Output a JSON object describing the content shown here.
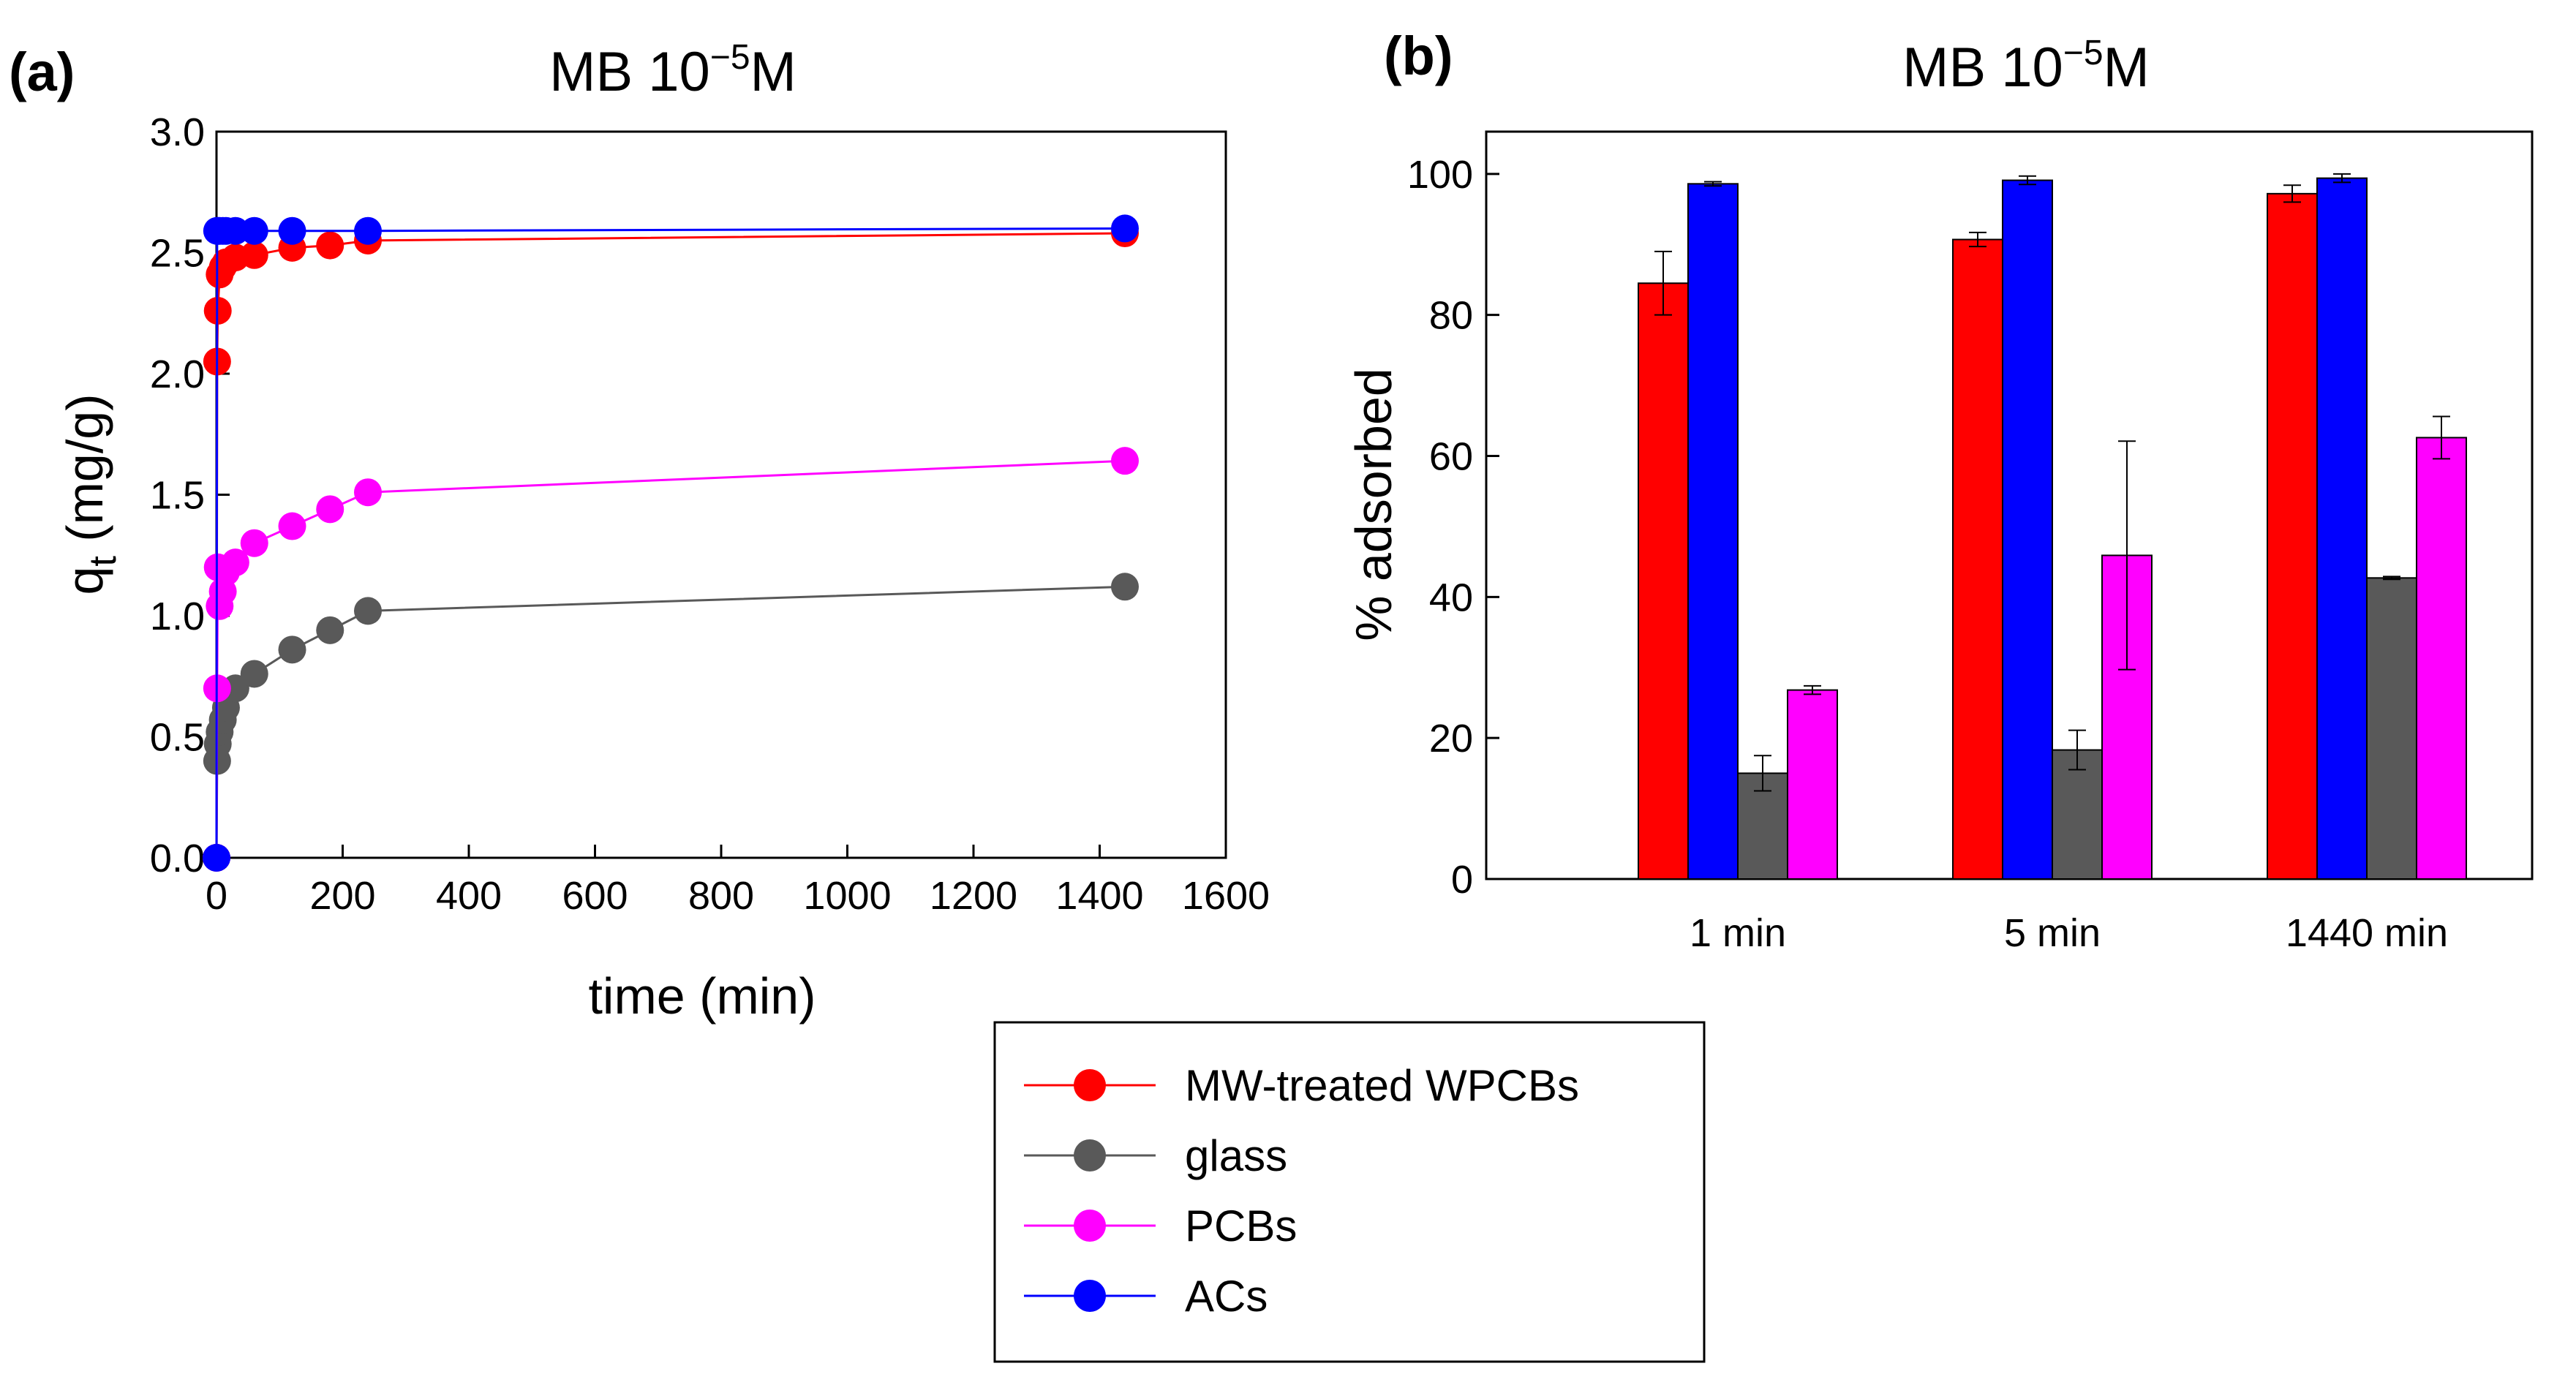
{
  "chart_data": [
    {
      "panel": "(a)",
      "type": "scatter",
      "mode": "lines+markers",
      "title_main": "MB 10",
      "title_sup": "−5",
      "title_tail": "M",
      "xlabel": "time (min)",
      "ylabel_main": "q",
      "ylabel_sub": "t",
      "ylabel_tail": " (mg/g)",
      "xlim": [
        0,
        1600
      ],
      "ylim": [
        0,
        3.0
      ],
      "xticks": [
        "0",
        "200",
        "400",
        "600",
        "800",
        "1000",
        "1200",
        "1400",
        "1600"
      ],
      "yticks": [
        "0.0",
        "0.5",
        "1.0",
        "1.5",
        "2.0",
        "2.5",
        "3.0"
      ],
      "series": [
        {
          "name": "MW-treated WPCBs",
          "color": "#ff0000",
          "x": [
            0,
            1,
            2,
            5,
            10,
            15,
            30,
            60,
            120,
            180,
            240,
            1440
          ],
          "y": [
            0,
            2.05,
            2.26,
            2.41,
            2.44,
            2.46,
            2.48,
            2.49,
            2.52,
            2.53,
            2.55,
            2.58
          ]
        },
        {
          "name": "glass",
          "color": "#595959",
          "x": [
            0,
            1,
            2,
            5,
            10,
            15,
            30,
            60,
            120,
            180,
            240,
            1440
          ],
          "y": [
            0,
            0.4,
            0.47,
            0.52,
            0.57,
            0.62,
            0.7,
            0.76,
            0.86,
            0.94,
            1.02,
            1.12
          ]
        },
        {
          "name": "PCBs",
          "color": "#ff00ff",
          "x": [
            0,
            1,
            2,
            5,
            10,
            15,
            30,
            60,
            120,
            180,
            240,
            1440
          ],
          "y": [
            0,
            0.7,
            1.2,
            1.04,
            1.1,
            1.18,
            1.22,
            1.3,
            1.37,
            1.44,
            1.51,
            1.64
          ]
        },
        {
          "name": "ACs",
          "color": "#0000ff",
          "x": [
            0,
            1,
            2,
            5,
            10,
            15,
            30,
            60,
            120,
            240,
            1440
          ],
          "y": [
            0,
            2.59,
            2.59,
            2.59,
            2.59,
            2.59,
            2.59,
            2.59,
            2.59,
            2.59,
            2.6
          ]
        }
      ]
    },
    {
      "panel": "(b)",
      "type": "bar",
      "title_main": "MB 10",
      "title_sup": "−5",
      "title_tail": "M",
      "ylabel": "% adsorbed",
      "ylim": [
        0,
        106
      ],
      "yticks": [
        "0",
        "20",
        "40",
        "60",
        "80",
        "100"
      ],
      "categories": [
        "1 min",
        "5 min",
        "1440 min"
      ],
      "series": [
        {
          "name": "MW-treated WPCBs",
          "color": "#ff0000",
          "values": [
            84.5,
            90.7,
            97.2
          ],
          "errors": [
            4.5,
            1.0,
            1.2
          ]
        },
        {
          "name": "ACs",
          "color": "#0000ff",
          "values": [
            98.6,
            99.1,
            99.4
          ],
          "errors": [
            0.3,
            0.6,
            0.6
          ]
        },
        {
          "name": "glass",
          "color": "#595959",
          "values": [
            15.0,
            18.3,
            42.7
          ],
          "errors": [
            2.5,
            2.8,
            0.2
          ]
        },
        {
          "name": "PCBs",
          "color": "#ff00ff",
          "values": [
            26.8,
            45.9,
            62.6
          ],
          "errors": [
            0.6,
            16.2,
            3.0
          ]
        }
      ]
    }
  ],
  "legend": [
    {
      "label": "MW-treated WPCBs",
      "color": "#ff0000"
    },
    {
      "label": "glass",
      "color": "#595959"
    },
    {
      "label": "PCBs",
      "color": "#ff00ff"
    },
    {
      "label": "ACs",
      "color": "#0000ff"
    }
  ]
}
